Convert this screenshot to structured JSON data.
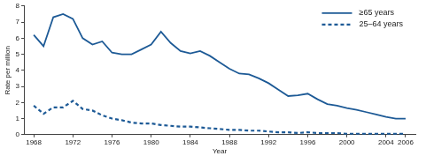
{
  "chart_data": {
    "type": "line",
    "x_label": "Year",
    "y_label": "Rate per million",
    "x": [
      1968,
      1969,
      1970,
      1971,
      1972,
      1973,
      1974,
      1975,
      1976,
      1977,
      1978,
      1979,
      1980,
      1981,
      1982,
      1983,
      1984,
      1985,
      1986,
      1987,
      1988,
      1989,
      1990,
      1991,
      1992,
      1993,
      1994,
      1995,
      1996,
      1997,
      1998,
      1999,
      2000,
      2001,
      2002,
      2003,
      2004,
      2005,
      2006
    ],
    "series": [
      {
        "name": "≥65 years",
        "color": "#1d5a96",
        "line_style": "solid",
        "values": [
          6.2,
          5.5,
          7.3,
          7.5,
          7.2,
          6.0,
          5.6,
          5.8,
          5.1,
          5.0,
          5.0,
          5.3,
          5.6,
          6.4,
          5.7,
          5.2,
          5.05,
          5.2,
          4.9,
          4.5,
          4.1,
          3.8,
          3.75,
          3.5,
          3.2,
          2.8,
          2.4,
          2.45,
          2.55,
          2.2,
          1.9,
          1.8,
          1.65,
          1.55,
          1.4,
          1.25,
          1.1,
          1.0,
          1.0
        ]
      },
      {
        "name": "25–64 years",
        "color": "#1d5a96",
        "line_style": "dashed",
        "values": [
          1.8,
          1.3,
          1.7,
          1.7,
          2.1,
          1.6,
          1.5,
          1.2,
          1.0,
          0.9,
          0.75,
          0.7,
          0.7,
          0.6,
          0.55,
          0.5,
          0.5,
          0.45,
          0.4,
          0.35,
          0.3,
          0.3,
          0.25,
          0.25,
          0.2,
          0.15,
          0.15,
          0.1,
          0.15,
          0.1,
          0.1,
          0.1,
          0.05,
          0.05,
          0.05,
          0.05,
          0.05,
          0.05,
          0.05
        ]
      }
    ],
    "xlim": [
      1967,
      2007
    ],
    "xticks": [
      1968,
      1972,
      1976,
      1980,
      1984,
      1988,
      1992,
      1996,
      2000,
      2004,
      2006
    ],
    "ylim": [
      0,
      8
    ],
    "yticks": [
      0,
      1,
      2,
      3,
      4,
      5,
      6,
      7,
      8
    ],
    "grid": false,
    "legend": "upper right"
  }
}
